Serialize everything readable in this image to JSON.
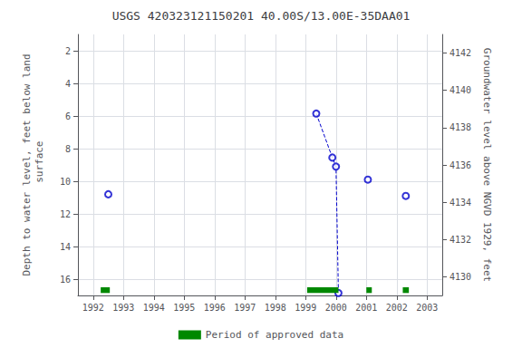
{
  "chart_data": {
    "type": "scatter",
    "title": "USGS 420323121150201 40.00S/13.00E-35DAA01",
    "ylabel": "Depth to water level, feet below land\n surface",
    "y2label": "Groundwater level above NGVD 1929, feet",
    "xlim": [
      1991.5,
      2003.5
    ],
    "xticks": [
      1992,
      1993,
      1994,
      1995,
      1996,
      1997,
      1998,
      1999,
      2000,
      2001,
      2002,
      2003
    ],
    "ylim": [
      17.0,
      1.0
    ],
    "yticks": [
      2,
      4,
      6,
      8,
      10,
      12,
      14,
      16
    ],
    "y2lim": [
      4129.0,
      4143.0
    ],
    "y2ticks": [
      4130,
      4132,
      4134,
      4136,
      4138,
      4140,
      4142
    ],
    "grid": true,
    "legend": "bottom",
    "series": [
      {
        "type": "line",
        "line_style": "dashed",
        "color": "#0000CC",
        "x": [
          1999.35,
          1999.88,
          2000.0,
          2000.08
        ],
        "values": [
          5.85,
          8.55,
          9.1,
          16.85
        ]
      },
      {
        "type": "scatter",
        "marker": "circle",
        "color": "#0000CC",
        "x": [
          1992.5,
          1999.35,
          1999.88,
          2000.0,
          2000.08,
          2001.05,
          2002.3
        ],
        "values": [
          10.8,
          5.85,
          8.55,
          9.1,
          16.85,
          9.9,
          10.9
        ]
      },
      {
        "type": "bar",
        "name": "Period of approved data",
        "color": "#008800",
        "x_start": [
          1992.25,
          1999.05,
          2001.0,
          2002.2
        ],
        "x_end": [
          1992.55,
          2000.08,
          2001.18,
          2002.4
        ],
        "y": 16.85,
        "height": 0.35
      }
    ]
  }
}
